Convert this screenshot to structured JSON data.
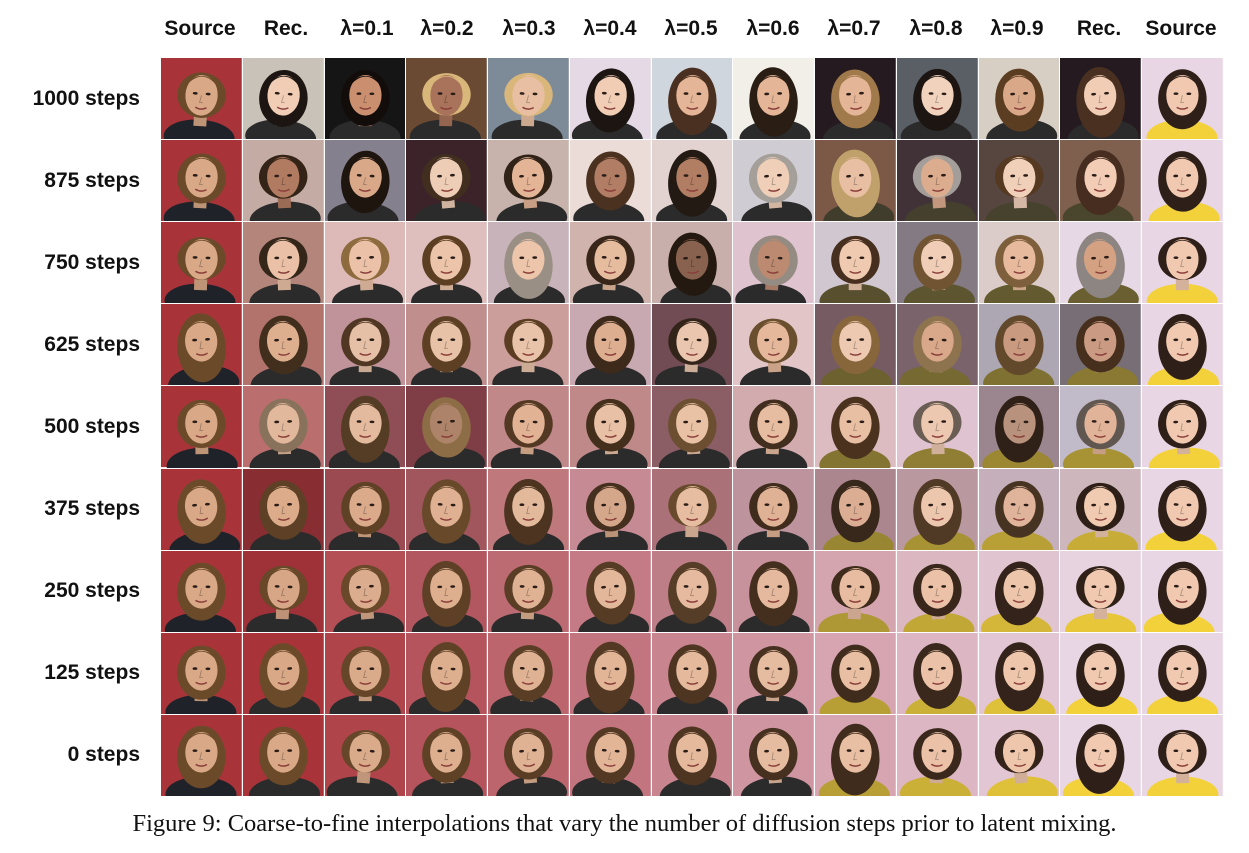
{
  "columns": [
    {
      "label": "Source"
    },
    {
      "label": "Rec."
    },
    {
      "label": "λ=0.1"
    },
    {
      "label": "λ=0.2"
    },
    {
      "label": "λ=0.3"
    },
    {
      "label": "λ=0.4"
    },
    {
      "label": "λ=0.5"
    },
    {
      "label": "λ=0.6"
    },
    {
      "label": "λ=0.7"
    },
    {
      "label": "λ=0.8"
    },
    {
      "label": "λ=0.9"
    },
    {
      "label": "Rec."
    },
    {
      "label": "Source"
    }
  ],
  "rows": [
    {
      "label": "1000 steps"
    },
    {
      "label": "875 steps"
    },
    {
      "label": "750 steps"
    },
    {
      "label": "625 steps"
    },
    {
      "label": "500 steps"
    },
    {
      "label": "375 steps"
    },
    {
      "label": "250 steps"
    },
    {
      "label": "125 steps"
    },
    {
      "label": "0 steps"
    }
  ],
  "caption": "Figure 9: Coarse-to-fine interpolations that vary the number of diffusion steps prior to latent mixing.",
  "colors": {
    "source_left_bg": "#a8343a",
    "source_right_bg": "#e9d6e4",
    "source_left_hair": "#6b4a2a",
    "source_right_hair": "#2e1f18",
    "source_left_skin": "#d8a887",
    "source_right_skin": "#f0c9b0",
    "accent_yellow": "#f3d13a"
  }
}
